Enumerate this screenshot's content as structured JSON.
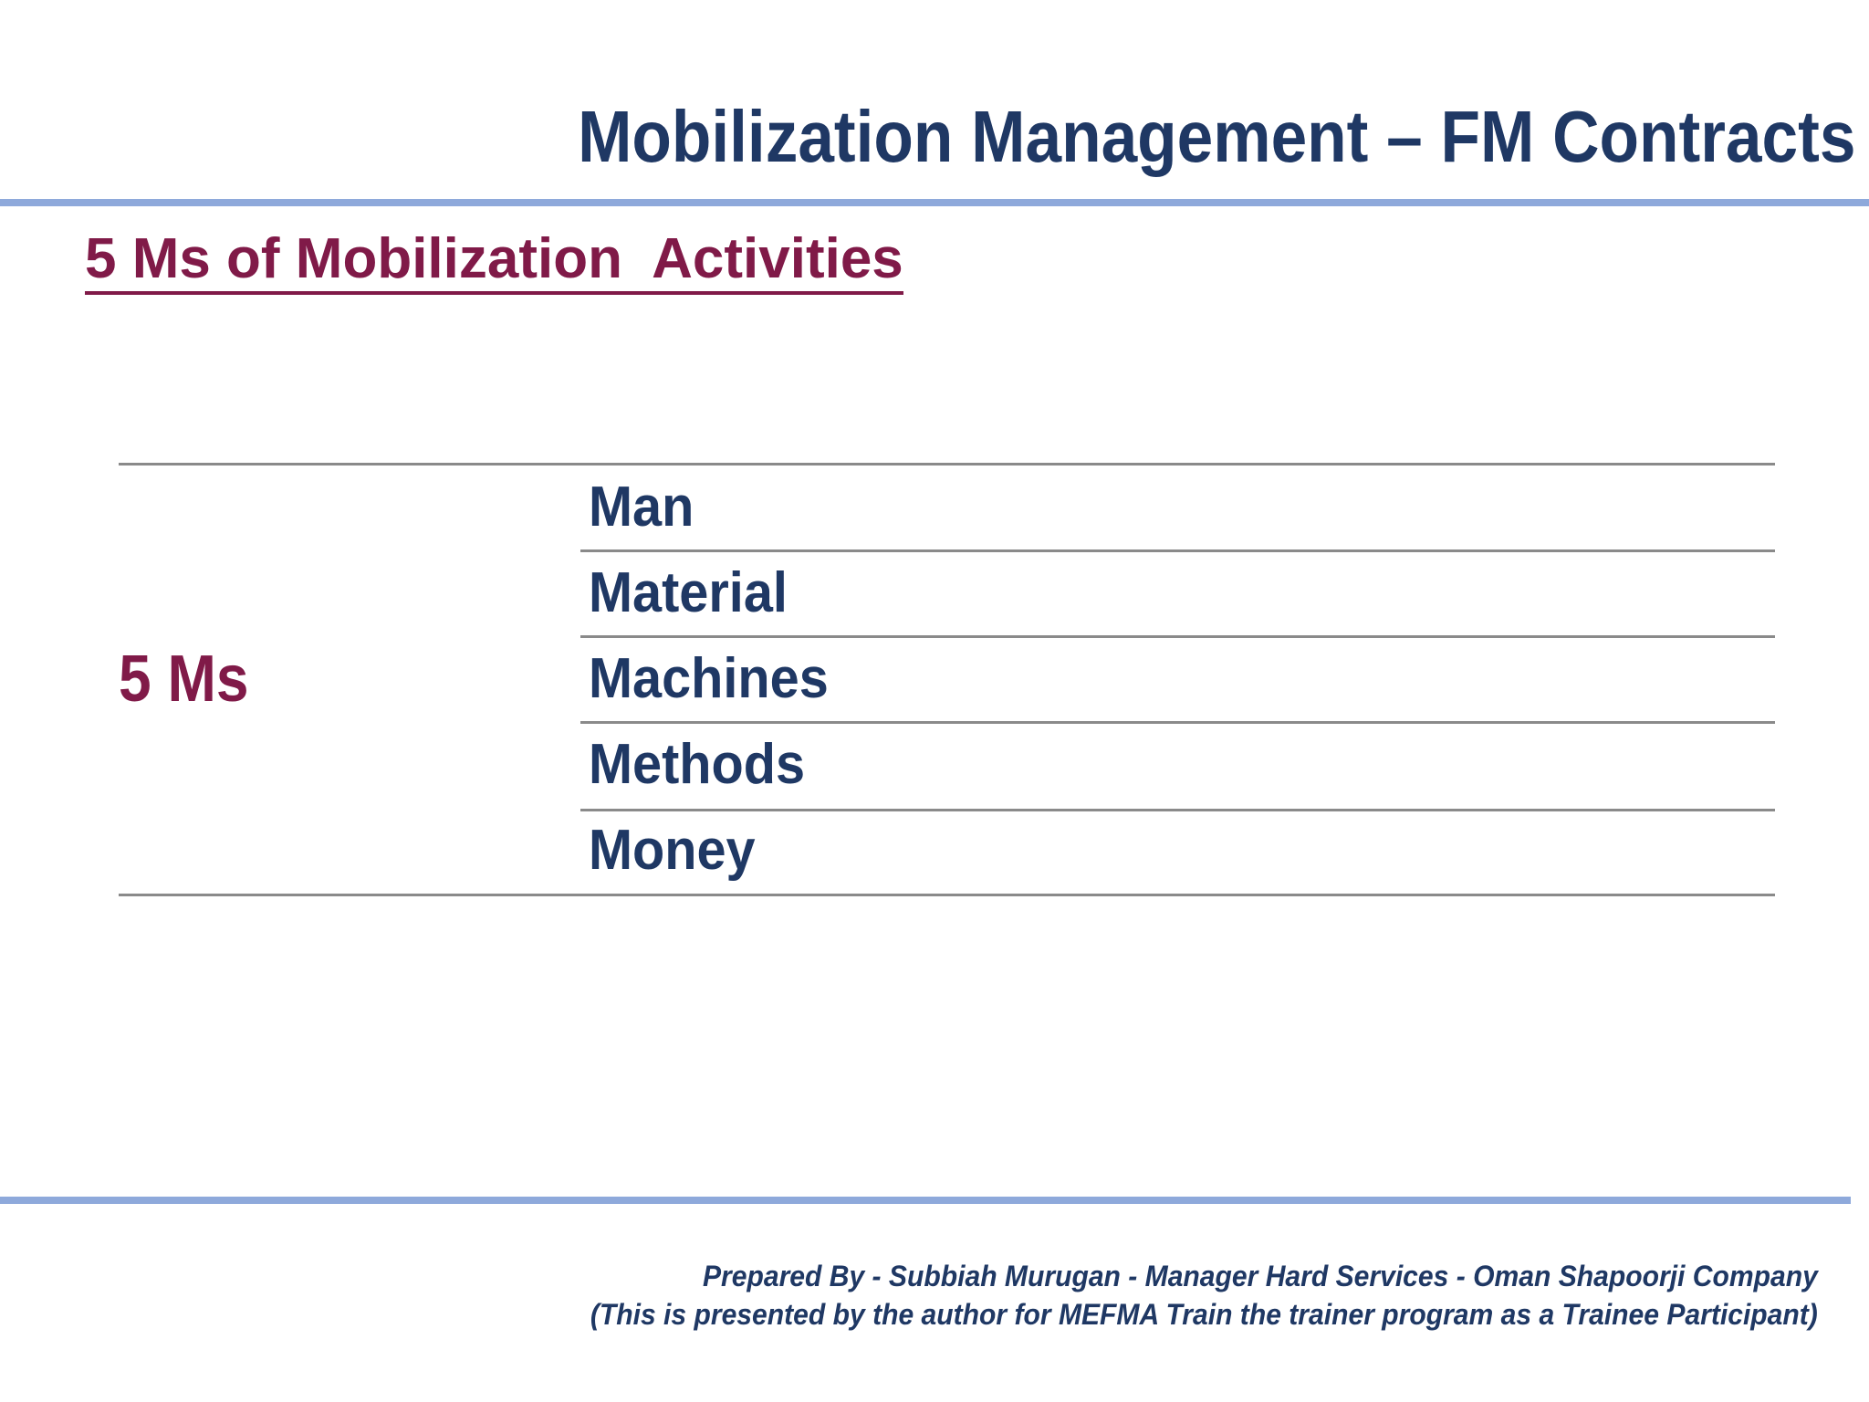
{
  "slide": {
    "title": "Mobilization Management – FM Contracts",
    "heading": "5 Ms of Mobilization  Activities",
    "table": {
      "left_label": "5 Ms",
      "rows": [
        {
          "label": "Man"
        },
        {
          "label": "Material"
        },
        {
          "label": "Machines"
        },
        {
          "label": "Methods"
        },
        {
          "label": "Money"
        }
      ]
    },
    "footer": {
      "line1": "Prepared By - Subbiah Murugan - Manager Hard Services - Oman Shapoorji Company",
      "line2": "(This is presented by the author for MEFMA Train the trainer program as a Trainee Participant)"
    },
    "colors": {
      "title_navy": "#1f3864",
      "heading_maroon": "#801a48",
      "accent_line_blue": "#8ea9db",
      "table_line_gray": "#8a8a8a"
    }
  }
}
